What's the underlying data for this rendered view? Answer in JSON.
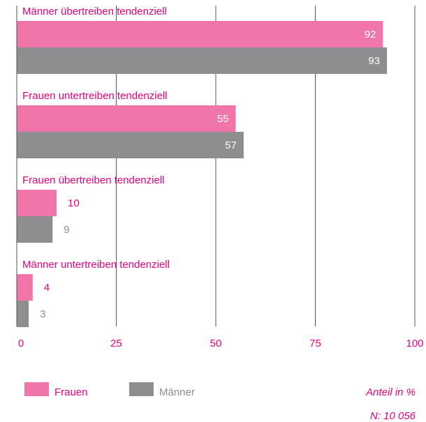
{
  "chart_data": {
    "type": "barh",
    "categories": [
      "Männer übertreiben tendenziell",
      "Frauen untertreiben tendenziell",
      "Frauen übertreiben tendenziell",
      "Männer untertreiben tendenziell"
    ],
    "series": [
      {
        "name": "Frauen",
        "color": "#f075aa",
        "label_color": "#e6007e",
        "values": [
          92,
          55,
          10,
          4
        ]
      },
      {
        "name": "Männer",
        "color": "#8e8e90",
        "label_color": "#8e8e90",
        "values": [
          93,
          57,
          9,
          3
        ]
      }
    ],
    "xlim": [
      0,
      100
    ],
    "xticks": [
      0,
      25,
      50,
      75,
      100
    ],
    "grid": true,
    "x_label": "Anteil in %",
    "note": "N: 10 056"
  }
}
